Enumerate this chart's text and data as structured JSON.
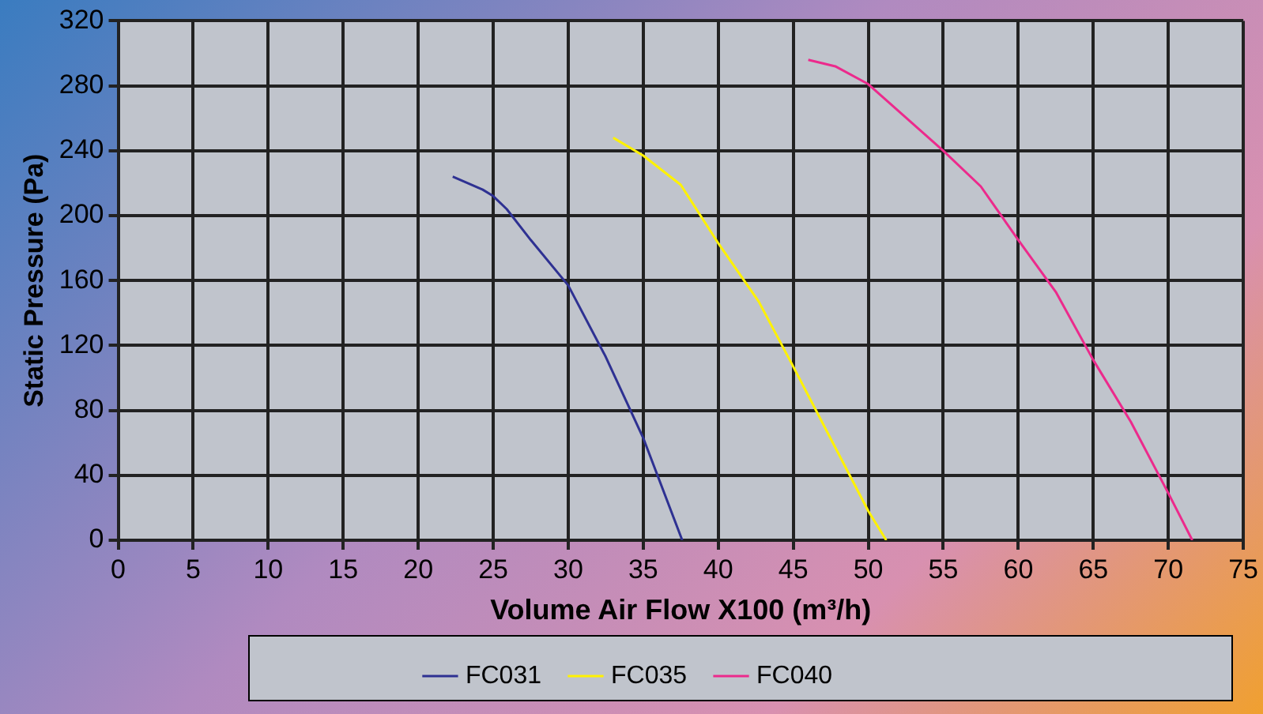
{
  "chart_data": {
    "type": "line",
    "xlabel": "Volume Air Flow X100 (m³/h)",
    "ylabel": "Static Pressure (Pa)",
    "xlim": [
      0,
      75
    ],
    "xticks": [
      0,
      5,
      10,
      15,
      20,
      25,
      30,
      35,
      40,
      45,
      50,
      55,
      60,
      65,
      70,
      75
    ],
    "ylim": [
      0,
      320
    ],
    "yticks": [
      0,
      40,
      80,
      120,
      160,
      200,
      240,
      280,
      320
    ],
    "grid": true,
    "legend": "bottom",
    "marker": "none",
    "line_style": "solid",
    "series": [
      {
        "name": "FC031",
        "color": "#2e3192",
        "x": [
          22.3,
          24.3,
          25,
          25.9,
          27.5,
          30,
          32.5,
          35,
          37.6
        ],
        "values": [
          224,
          216,
          212,
          204,
          185,
          157,
          113,
          63,
          0
        ]
      },
      {
        "name": "FC035",
        "color": "#fff200",
        "x": [
          33,
          35,
          37.5,
          40,
          42.7,
          45,
          50,
          51.2
        ],
        "values": [
          248,
          237,
          219,
          183,
          147,
          107,
          18,
          0
        ]
      },
      {
        "name": "FC040",
        "color": "#ec2a8c",
        "x": [
          46,
          47.8,
          50,
          55,
          57.5,
          60,
          62.5,
          65,
          67.5,
          70,
          71.6
        ],
        "values": [
          296,
          292,
          281,
          240,
          218,
          185,
          153,
          111,
          73,
          29,
          0
        ]
      }
    ]
  }
}
